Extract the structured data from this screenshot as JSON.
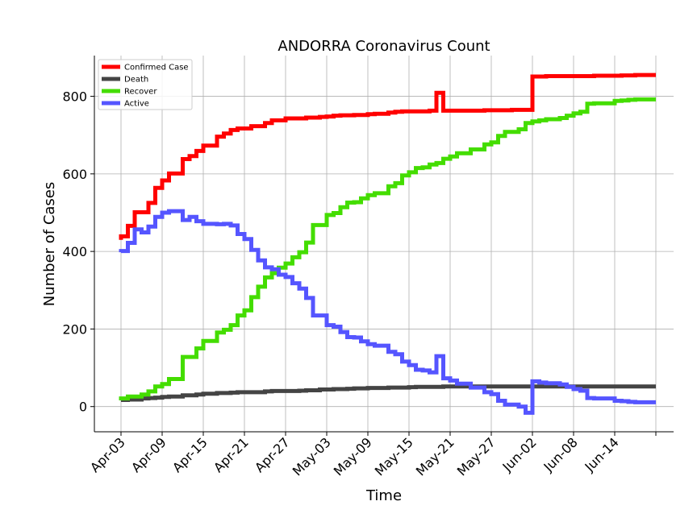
{
  "chart_data": {
    "type": "line",
    "title": "ANDORRA Coronavirus Count",
    "xlabel": "Time",
    "ylabel": "Number of Cases",
    "x_ticks": [
      "Apr-03",
      "Apr-09",
      "Apr-15",
      "Apr-21",
      "Apr-27",
      "May-03",
      "May-09",
      "May-15",
      "May-21",
      "May-27",
      "Jun-02",
      "Jun-08",
      "Jun-14"
    ],
    "ylim": [
      -65,
      905
    ],
    "y_ticks": [
      0,
      200,
      400,
      600,
      800
    ],
    "grid": true,
    "legend_position": "top-left",
    "x_start_date": "2020-04-03",
    "x_start_label": "Apr-03",
    "series": [
      {
        "name": "Confirmed Case",
        "color": "#ff0000",
        "step": true,
        "points": [
          [
            "Apr-03",
            430
          ],
          [
            "Apr-04",
            439
          ],
          [
            "Apr-05",
            466
          ],
          [
            "Apr-06",
            501
          ],
          [
            "Apr-07",
            501
          ],
          [
            "Apr-08",
            525
          ],
          [
            "Apr-09",
            564
          ],
          [
            "Apr-10",
            583
          ],
          [
            "Apr-11",
            601
          ],
          [
            "Apr-12",
            601
          ],
          [
            "Apr-13",
            638
          ],
          [
            "Apr-14",
            646
          ],
          [
            "Apr-15",
            659
          ],
          [
            "Apr-16",
            673
          ],
          [
            "Apr-17",
            673
          ],
          [
            "Apr-18",
            696
          ],
          [
            "Apr-19",
            704
          ],
          [
            "Apr-20",
            713
          ],
          [
            "Apr-21",
            717
          ],
          [
            "Apr-22",
            717
          ],
          [
            "Apr-23",
            723
          ],
          [
            "Apr-24",
            723
          ],
          [
            "Apr-25",
            731
          ],
          [
            "Apr-26",
            738
          ],
          [
            "Apr-27",
            738
          ],
          [
            "Apr-28",
            743
          ],
          [
            "Apr-29",
            743
          ],
          [
            "Apr-30",
            743
          ],
          [
            "May-01",
            745
          ],
          [
            "May-02",
            745
          ],
          [
            "May-03",
            747
          ],
          [
            "May-04",
            748
          ],
          [
            "May-05",
            750
          ],
          [
            "May-06",
            751
          ],
          [
            "May-07",
            751
          ],
          [
            "May-08",
            752
          ],
          [
            "May-09",
            752
          ],
          [
            "May-10",
            754
          ],
          [
            "May-11",
            755
          ],
          [
            "May-12",
            755
          ],
          [
            "May-13",
            758
          ],
          [
            "May-14",
            760
          ],
          [
            "May-15",
            761
          ],
          [
            "May-16",
            761
          ],
          [
            "May-17",
            761
          ],
          [
            "May-18",
            761
          ],
          [
            "May-19",
            763
          ],
          [
            "May-20",
            809
          ],
          [
            "May-21",
            763
          ],
          [
            "May-22",
            763
          ],
          [
            "May-23",
            763
          ],
          [
            "May-24",
            763
          ],
          [
            "May-25",
            763
          ],
          [
            "May-26",
            763
          ],
          [
            "May-27",
            764
          ],
          [
            "May-28",
            764
          ],
          [
            "May-29",
            764
          ],
          [
            "May-30",
            764
          ],
          [
            "May-31",
            765
          ],
          [
            "Jun-01",
            765
          ],
          [
            "Jun-02",
            765
          ],
          [
            "Jun-03",
            851
          ],
          [
            "Jun-04",
            851
          ],
          [
            "Jun-05",
            852
          ],
          [
            "Jun-06",
            852
          ],
          [
            "Jun-07",
            852
          ],
          [
            "Jun-08",
            852
          ],
          [
            "Jun-09",
            852
          ],
          [
            "Jun-10",
            852
          ],
          [
            "Jun-11",
            852
          ],
          [
            "Jun-12",
            853
          ],
          [
            "Jun-13",
            853
          ],
          [
            "Jun-14",
            853
          ],
          [
            "Jun-15",
            853
          ],
          [
            "Jun-16",
            854
          ],
          [
            "Jun-17",
            854
          ],
          [
            "Jun-18",
            855
          ],
          [
            "Jun-19",
            855
          ],
          [
            "Jun-20",
            855
          ]
        ]
      },
      {
        "name": "Death",
        "color": "#444444",
        "step": true,
        "points": [
          [
            "Apr-03",
            16
          ],
          [
            "Apr-04",
            17
          ],
          [
            "Apr-05",
            18
          ],
          [
            "Apr-06",
            18
          ],
          [
            "Apr-07",
            21
          ],
          [
            "Apr-08",
            22
          ],
          [
            "Apr-09",
            23
          ],
          [
            "Apr-10",
            25
          ],
          [
            "Apr-11",
            26
          ],
          [
            "Apr-12",
            26
          ],
          [
            "Apr-13",
            29
          ],
          [
            "Apr-14",
            29
          ],
          [
            "Apr-15",
            31
          ],
          [
            "Apr-16",
            33
          ],
          [
            "Apr-17",
            33
          ],
          [
            "Apr-18",
            35
          ],
          [
            "Apr-19",
            35
          ],
          [
            "Apr-20",
            36
          ],
          [
            "Apr-21",
            37
          ],
          [
            "Apr-22",
            37
          ],
          [
            "Apr-23",
            37
          ],
          [
            "Apr-24",
            37
          ],
          [
            "Apr-25",
            39
          ],
          [
            "Apr-26",
            40
          ],
          [
            "Apr-27",
            40
          ],
          [
            "Apr-28",
            40
          ],
          [
            "Apr-29",
            40
          ],
          [
            "Apr-30",
            41
          ],
          [
            "May-01",
            42
          ],
          [
            "May-02",
            42
          ],
          [
            "May-03",
            44
          ],
          [
            "May-04",
            44
          ],
          [
            "May-05",
            45
          ],
          [
            "May-06",
            45
          ],
          [
            "May-07",
            46
          ],
          [
            "May-08",
            47
          ],
          [
            "May-09",
            47
          ],
          [
            "May-10",
            48
          ],
          [
            "May-11",
            48
          ],
          [
            "May-12",
            48
          ],
          [
            "May-13",
            49
          ],
          [
            "May-14",
            49
          ],
          [
            "May-15",
            49
          ],
          [
            "May-16",
            50
          ],
          [
            "May-17",
            51
          ],
          [
            "May-18",
            51
          ],
          [
            "May-20",
            51
          ],
          [
            "Jun-20",
            52
          ]
        ]
      },
      {
        "name": "Recover",
        "color": "#44dd00",
        "step": true,
        "points": [
          [
            "Apr-03",
            16
          ],
          [
            "Apr-04",
            21
          ],
          [
            "Apr-05",
            26
          ],
          [
            "Apr-06",
            26
          ],
          [
            "Apr-07",
            31
          ],
          [
            "Apr-08",
            39
          ],
          [
            "Apr-09",
            52
          ],
          [
            "Apr-10",
            58
          ],
          [
            "Apr-11",
            71
          ],
          [
            "Apr-12",
            71
          ],
          [
            "Apr-13",
            128
          ],
          [
            "Apr-14",
            128
          ],
          [
            "Apr-15",
            150
          ],
          [
            "Apr-16",
            169
          ],
          [
            "Apr-17",
            169
          ],
          [
            "Apr-18",
            191
          ],
          [
            "Apr-19",
            198
          ],
          [
            "Apr-20",
            210
          ],
          [
            "Apr-21",
            235
          ],
          [
            "Apr-22",
            248
          ],
          [
            "Apr-23",
            282
          ],
          [
            "Apr-24",
            309
          ],
          [
            "Apr-25",
            333
          ],
          [
            "Apr-26",
            344
          ],
          [
            "Apr-27",
            358
          ],
          [
            "Apr-28",
            369
          ],
          [
            "Apr-29",
            385
          ],
          [
            "Apr-30",
            398
          ],
          [
            "May-01",
            423
          ],
          [
            "May-02",
            468
          ],
          [
            "May-03",
            468
          ],
          [
            "May-04",
            494
          ],
          [
            "May-05",
            499
          ],
          [
            "May-06",
            514
          ],
          [
            "May-07",
            526
          ],
          [
            "May-08",
            527
          ],
          [
            "May-09",
            537
          ],
          [
            "May-10",
            545
          ],
          [
            "May-11",
            550
          ],
          [
            "May-12",
            550
          ],
          [
            "May-13",
            568
          ],
          [
            "May-14",
            576
          ],
          [
            "May-15",
            596
          ],
          [
            "May-16",
            604
          ],
          [
            "May-17",
            615
          ],
          [
            "May-18",
            617
          ],
          [
            "May-19",
            624
          ],
          [
            "May-20",
            628
          ],
          [
            "May-21",
            639
          ],
          [
            "May-22",
            645
          ],
          [
            "May-23",
            653
          ],
          [
            "May-24",
            653
          ],
          [
            "May-25",
            663
          ],
          [
            "May-26",
            663
          ],
          [
            "May-27",
            676
          ],
          [
            "May-28",
            681
          ],
          [
            "May-29",
            698
          ],
          [
            "May-30",
            708
          ],
          [
            "May-31",
            708
          ],
          [
            "Jun-01",
            715
          ],
          [
            "Jun-02",
            731
          ],
          [
            "Jun-03",
            735
          ],
          [
            "Jun-04",
            738
          ],
          [
            "Jun-05",
            741
          ],
          [
            "Jun-06",
            741
          ],
          [
            "Jun-07",
            744
          ],
          [
            "Jun-08",
            750
          ],
          [
            "Jun-09",
            756
          ],
          [
            "Jun-10",
            760
          ],
          [
            "Jun-11",
            781
          ],
          [
            "Jun-12",
            782
          ],
          [
            "Jun-13",
            782
          ],
          [
            "Jun-14",
            782
          ],
          [
            "Jun-15",
            788
          ],
          [
            "Jun-16",
            789
          ],
          [
            "Jun-17",
            791
          ],
          [
            "Jun-18",
            792
          ],
          [
            "Jun-19",
            792
          ],
          [
            "Jun-20",
            792
          ]
        ]
      },
      {
        "name": "Active",
        "color": "#5555ff",
        "step": true,
        "points": [
          [
            "Apr-03",
            398
          ],
          [
            "Apr-04",
            401
          ],
          [
            "Apr-05",
            422
          ],
          [
            "Apr-06",
            457
          ],
          [
            "Apr-07",
            449
          ],
          [
            "Apr-08",
            464
          ],
          [
            "Apr-09",
            489
          ],
          [
            "Apr-10",
            500
          ],
          [
            "Apr-11",
            504
          ],
          [
            "Apr-12",
            504
          ],
          [
            "Apr-13",
            481
          ],
          [
            "Apr-14",
            489
          ],
          [
            "Apr-15",
            478
          ],
          [
            "Apr-16",
            471
          ],
          [
            "Apr-17",
            471
          ],
          [
            "Apr-18",
            470
          ],
          [
            "Apr-19",
            471
          ],
          [
            "Apr-20",
            467
          ],
          [
            "Apr-21",
            445
          ],
          [
            "Apr-22",
            432
          ],
          [
            "Apr-23",
            404
          ],
          [
            "Apr-24",
            377
          ],
          [
            "Apr-25",
            359
          ],
          [
            "Apr-26",
            354
          ],
          [
            "Apr-27",
            340
          ],
          [
            "Apr-28",
            334
          ],
          [
            "Apr-29",
            318
          ],
          [
            "Apr-30",
            304
          ],
          [
            "May-01",
            280
          ],
          [
            "May-02",
            235
          ],
          [
            "May-03",
            235
          ],
          [
            "May-04",
            210
          ],
          [
            "May-05",
            206
          ],
          [
            "May-06",
            192
          ],
          [
            "May-07",
            179
          ],
          [
            "May-08",
            178
          ],
          [
            "May-09",
            168
          ],
          [
            "May-10",
            161
          ],
          [
            "May-11",
            157
          ],
          [
            "May-12",
            157
          ],
          [
            "May-13",
            141
          ],
          [
            "May-14",
            135
          ],
          [
            "May-15",
            116
          ],
          [
            "May-16",
            107
          ],
          [
            "May-17",
            95
          ],
          [
            "May-18",
            93
          ],
          [
            "May-19",
            88
          ],
          [
            "May-20",
            130
          ],
          [
            "May-21",
            73
          ],
          [
            "May-22",
            67
          ],
          [
            "May-23",
            59
          ],
          [
            "May-24",
            59
          ],
          [
            "May-25",
            49
          ],
          [
            "May-26",
            49
          ],
          [
            "May-27",
            37
          ],
          [
            "May-28",
            32
          ],
          [
            "May-29",
            15
          ],
          [
            "May-30",
            5
          ],
          [
            "May-31",
            5
          ],
          [
            "Jun-01",
            0
          ],
          [
            "Jun-02",
            -16
          ],
          [
            "Jun-03",
            65
          ],
          [
            "Jun-04",
            62
          ],
          [
            "Jun-05",
            60
          ],
          [
            "Jun-06",
            60
          ],
          [
            "Jun-07",
            57
          ],
          [
            "Jun-08",
            51
          ],
          [
            "Jun-09",
            45
          ],
          [
            "Jun-10",
            41
          ],
          [
            "Jun-11",
            22
          ],
          [
            "Jun-12",
            21
          ],
          [
            "Jun-13",
            21
          ],
          [
            "Jun-14",
            21
          ],
          [
            "Jun-15",
            15
          ],
          [
            "Jun-16",
            14
          ],
          [
            "Jun-17",
            12
          ],
          [
            "Jun-18",
            11
          ],
          [
            "Jun-19",
            11
          ],
          [
            "Jun-20",
            11
          ]
        ]
      }
    ]
  }
}
